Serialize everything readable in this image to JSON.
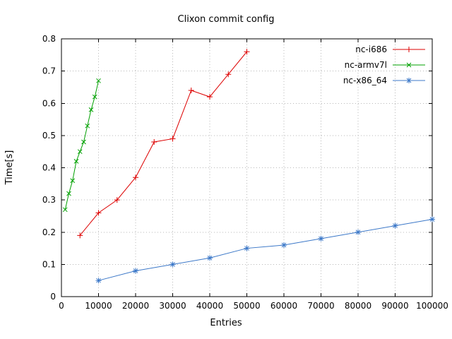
{
  "chart_data": {
    "type": "line",
    "title": "Clixon commit config",
    "xlabel": "Entries",
    "ylabel": "Time[s]",
    "xlim": [
      0,
      100000
    ],
    "ylim": [
      0,
      0.8
    ],
    "xticks": [
      0,
      10000,
      20000,
      30000,
      40000,
      50000,
      60000,
      70000,
      80000,
      90000,
      100000
    ],
    "yticks": [
      0,
      0.1,
      0.2,
      0.3,
      0.4,
      0.5,
      0.6,
      0.7,
      0.8
    ],
    "grid": true,
    "legend_position": "top-right",
    "series": [
      {
        "name": "nc-i686",
        "color": "#dd0000",
        "marker": "plus",
        "x": [
          5000,
          10000,
          15000,
          20000,
          25000,
          30000,
          35000,
          40000,
          45000,
          50000
        ],
        "y": [
          0.19,
          0.26,
          0.3,
          0.37,
          0.48,
          0.49,
          0.64,
          0.62,
          0.69,
          0.76
        ]
      },
      {
        "name": "nc-armv7l",
        "color": "#00a000",
        "marker": "cross",
        "x": [
          1000,
          2000,
          3000,
          4000,
          5000,
          6000,
          7000,
          8000,
          9000,
          10000
        ],
        "y": [
          0.27,
          0.32,
          0.36,
          0.42,
          0.45,
          0.48,
          0.53,
          0.58,
          0.62,
          0.67
        ]
      },
      {
        "name": "nc-x86_64",
        "color": "#3c78c8",
        "marker": "asterisk",
        "x": [
          10000,
          20000,
          30000,
          40000,
          50000,
          60000,
          70000,
          80000,
          90000,
          100000
        ],
        "y": [
          0.05,
          0.08,
          0.1,
          0.12,
          0.15,
          0.16,
          0.18,
          0.2,
          0.22,
          0.24
        ]
      }
    ]
  }
}
